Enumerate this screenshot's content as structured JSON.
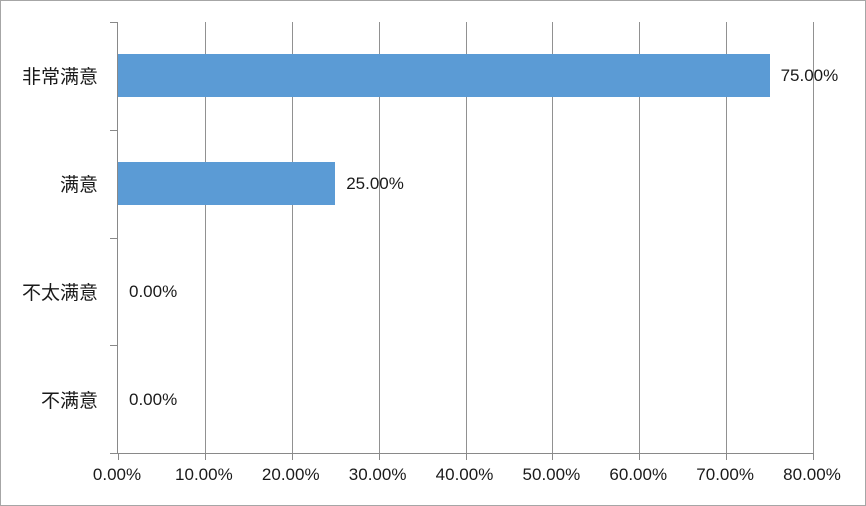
{
  "chart_data": {
    "type": "bar",
    "orientation": "horizontal",
    "title": "",
    "legend": "none",
    "grid": "vertical-major",
    "categories": [
      "非常满意",
      "满意",
      "不太满意",
      "不满意"
    ],
    "values": [
      75.0,
      25.0,
      0.0,
      0.0
    ],
    "data_labels": [
      "75.00%",
      "25.00%",
      "0.00%",
      "0.00%"
    ],
    "x_axis": {
      "min": 0,
      "max": 80,
      "tick_interval": 10,
      "tick_labels": [
        "0.00%",
        "10.00%",
        "20.00%",
        "30.00%",
        "40.00%",
        "50.00%",
        "60.00%",
        "70.00%",
        "80.00%"
      ]
    },
    "y_axis": {
      "category_order_top_to_bottom": [
        "非常满意",
        "满意",
        "不太满意",
        "不满意"
      ]
    },
    "colors": {
      "bar": "#5b9bd5",
      "gridline": "#919191",
      "axis": "#898989",
      "text": "#1a1a1a",
      "background": "#ffffff",
      "border": "#a6a6a6"
    }
  }
}
